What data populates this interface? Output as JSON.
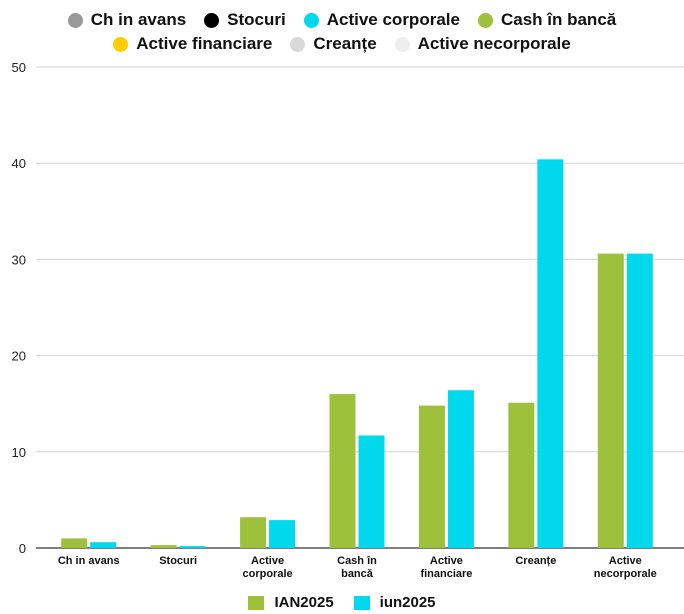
{
  "top_legend": {
    "rows": [
      [
        {
          "label": "Ch in avans",
          "color": "#999999"
        },
        {
          "label": "Stocuri",
          "color": "#000000"
        },
        {
          "label": "Active corporale",
          "color": "#00d8ee"
        },
        {
          "label": "Cash în bancă",
          "color": "#9dc13b"
        }
      ],
      [
        {
          "label": "Active financiare",
          "color": "#ffcc00"
        },
        {
          "label": "Creanțe",
          "color": "#d9d9d9"
        },
        {
          "label": "Active necorporale",
          "color": "#eeeeee"
        }
      ]
    ]
  },
  "chart_data": {
    "type": "bar",
    "categories": [
      [
        "Ch in avans"
      ],
      [
        "Stocuri"
      ],
      [
        "Active",
        "corporale"
      ],
      [
        "Cash în",
        "bancă"
      ],
      [
        "Active",
        "financiare"
      ],
      [
        "Creanțe"
      ],
      [
        "Active",
        "necorporale"
      ]
    ],
    "series": [
      {
        "name": "IAN2025",
        "color": "#9dc13b",
        "values": [
          1.0,
          0.3,
          3.2,
          16.0,
          14.8,
          15.1,
          30.6
        ]
      },
      {
        "name": "iun2025",
        "color": "#00d8ee",
        "values": [
          0.6,
          0.2,
          2.9,
          11.7,
          16.4,
          40.4,
          30.6
        ]
      }
    ],
    "ylim": [
      0,
      50
    ],
    "yticks": [
      0,
      10,
      20,
      30,
      40,
      50
    ],
    "grid": true,
    "legend": "bottom"
  }
}
